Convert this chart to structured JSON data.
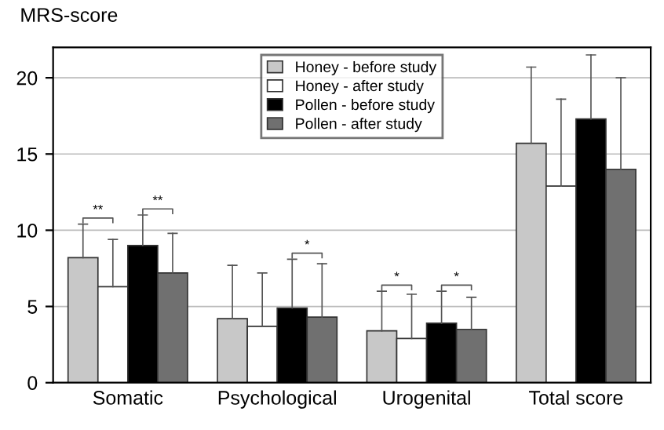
{
  "chart_data": {
    "type": "bar",
    "ylabel": "MRS-score",
    "categories": [
      "Somatic",
      "Psychological",
      "Urogenital",
      "Total score"
    ],
    "series": [
      {
        "name": "Honey - before study",
        "color": "#c8c8c8",
        "values": [
          8.2,
          4.2,
          3.4,
          15.7
        ],
        "errors": [
          [
            8.2,
            10.4
          ],
          [
            4.2,
            7.7
          ],
          [
            3.4,
            6.0
          ],
          [
            15.7,
            20.7
          ]
        ]
      },
      {
        "name": "Honey - after study",
        "color": "#ffffff",
        "values": [
          6.3,
          3.7,
          2.9,
          12.9
        ],
        "errors": [
          [
            6.3,
            9.4
          ],
          [
            3.7,
            7.2
          ],
          [
            2.9,
            5.8
          ],
          [
            12.9,
            18.6
          ]
        ]
      },
      {
        "name": "Pollen - before study",
        "color": "#000000",
        "values": [
          9.0,
          4.9,
          3.9,
          17.3
        ],
        "errors": [
          [
            9.0,
            11.0
          ],
          [
            4.9,
            8.1
          ],
          [
            3.9,
            6.0
          ],
          [
            17.3,
            21.5
          ]
        ]
      },
      {
        "name": "Pollen - after study",
        "color": "#707070",
        "values": [
          7.2,
          4.3,
          3.5,
          14.0
        ],
        "errors": [
          [
            7.2,
            9.8
          ],
          [
            4.3,
            7.8
          ],
          [
            3.5,
            5.6
          ],
          [
            14.0,
            20.0
          ]
        ]
      }
    ],
    "ylim": [
      0,
      22
    ],
    "yticks": [
      0,
      5,
      10,
      15,
      20
    ],
    "grid": "y",
    "legend": "top",
    "annotations": [
      "**",
      "**",
      "*",
      "*",
      "*"
    ]
  }
}
